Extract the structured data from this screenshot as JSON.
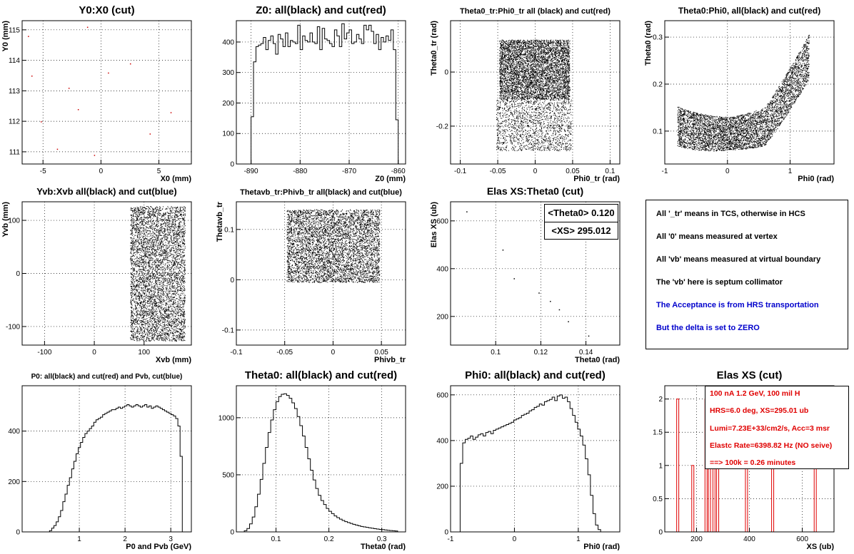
{
  "chart_data": [
    {
      "id": "p1",
      "type": "scatter",
      "title": "Y0:X0 (cut)",
      "xlabel": "X0 (mm)",
      "ylabel": "Y0 (mm)",
      "xlim": [
        -6.8,
        7.8
      ],
      "ylim": [
        110.6,
        115.3
      ],
      "xticks": [
        -5,
        0,
        5
      ],
      "yticks": [
        111,
        112,
        113,
        114,
        115
      ],
      "grid": true,
      "points": [
        [
          -6.3,
          114.8
        ],
        [
          -6.0,
          113.5
        ],
        [
          -2.8,
          113.1
        ],
        [
          -2.0,
          112.4
        ],
        [
          -1.2,
          115.1
        ],
        [
          0.6,
          113.6
        ],
        [
          -0.6,
          110.9
        ],
        [
          4.2,
          111.6
        ],
        [
          6.0,
          112.3
        ],
        [
          -3.8,
          111.1
        ],
        [
          2.5,
          113.9
        ],
        [
          -5.2,
          112.0
        ]
      ]
    },
    {
      "id": "p2",
      "type": "histogram",
      "title": "Z0: all(black) and cut(red)",
      "xlabel": "Z0 (mm)",
      "ylabel": "",
      "xlim": [
        -893,
        -858.5
      ],
      "ylim": [
        0,
        470
      ],
      "xticks": [
        -890,
        -880,
        -870,
        -860
      ],
      "yticks": [
        0,
        100,
        200,
        300,
        400
      ],
      "grid": true,
      "bin_range": [
        -890,
        -860
      ],
      "series": [
        {
          "color": "#000000",
          "values": [
            155,
            335,
            385,
            390,
            395,
            415,
            375,
            405,
            420,
            395,
            360,
            425,
            410,
            385,
            430,
            385,
            405,
            400,
            395,
            455,
            375,
            420,
            405,
            400,
            430,
            400,
            395,
            450,
            375,
            445,
            410,
            405,
            395,
            385,
            440,
            420,
            385,
            460,
            410,
            430,
            440,
            395,
            400,
            425,
            410,
            395,
            455,
            440,
            455,
            435,
            395,
            425,
            375,
            415,
            400,
            420,
            405,
            440,
            375,
            145
          ]
        },
        {
          "color": "#ff0000",
          "values": [
            0,
            0,
            0,
            0,
            0,
            0,
            0,
            0,
            0,
            0,
            0,
            0,
            0,
            0,
            0,
            0,
            0,
            0,
            0,
            0,
            0,
            0,
            0,
            0,
            0,
            0,
            0,
            0,
            0,
            0,
            0,
            0,
            0,
            0,
            0,
            0,
            0,
            0,
            0,
            0,
            0,
            0,
            0,
            0,
            0,
            0,
            0,
            0,
            0,
            0,
            0,
            0,
            0,
            0,
            0,
            0,
            0,
            0,
            0,
            0
          ]
        }
      ]
    },
    {
      "id": "p3",
      "type": "scatter",
      "title": "Theta0_tr:Phi0_tr all (black) and cut(red)",
      "xlabel": "Phi0_tr (rad)",
      "ylabel": "Theta0_tr (rad)",
      "xlim": [
        -0.113,
        0.113
      ],
      "ylim": [
        -0.34,
        0.19
      ],
      "xticks": [
        -0.1,
        -0.05,
        0,
        0.05,
        0.1
      ],
      "yticks": [
        -0.2,
        0
      ],
      "grid": true,
      "clouds": [
        {
          "shape": "rect",
          "xr": [
            -0.048,
            0.046
          ],
          "yr": [
            -0.1,
            0.12
          ],
          "n": 5200
        },
        {
          "shape": "rect",
          "xr": [
            -0.052,
            0.048
          ],
          "yr": [
            -0.29,
            -0.1
          ],
          "n": 1600
        }
      ]
    },
    {
      "id": "p4",
      "type": "scatter",
      "title": "Theta0:Phi0, all(black) and cut(red)",
      "xlabel": "Phi0 (rad)",
      "ylabel": "Theta0 (rad)",
      "xlim": [
        -1.0,
        1.7
      ],
      "ylim": [
        0.03,
        0.335
      ],
      "xticks": [
        -1,
        0,
        1
      ],
      "yticks": [
        0.1,
        0.2,
        0.3
      ],
      "grid": true,
      "clouds": [
        {
          "shape": "banana",
          "xr": [
            -0.8,
            1.3
          ],
          "n": 5200
        }
      ]
    },
    {
      "id": "p5",
      "type": "scatter",
      "title": "Yvb:Xvb all(black) and cut(blue)",
      "xlabel": "Xvb (mm)",
      "ylabel": "Yvb (mm)",
      "xlim": [
        -145,
        195
      ],
      "ylim": [
        -135,
        135
      ],
      "xticks": [
        -100,
        0,
        100
      ],
      "yticks": [
        -100,
        0,
        100
      ],
      "grid": true,
      "clouds": [
        {
          "shape": "rect",
          "xr": [
            72,
            182
          ],
          "yr": [
            -127,
            127
          ],
          "n": 6000
        }
      ]
    },
    {
      "id": "p6",
      "type": "scatter",
      "title": "Thetavb_tr:Phivb_tr all(black) and cut(blue)",
      "xlabel": "Phivb_tr",
      "ylabel": "Thetavb_tr",
      "xlim": [
        -0.1,
        0.075
      ],
      "ylim": [
        -0.13,
        0.155
      ],
      "xticks": [
        -0.1,
        -0.05,
        0,
        0.05
      ],
      "yticks": [
        -0.1,
        0,
        0.1
      ],
      "grid": true,
      "clouds": [
        {
          "shape": "rect",
          "xr": [
            -0.048,
            0.048
          ],
          "yr": [
            -0.005,
            0.14
          ],
          "n": 5500
        }
      ]
    },
    {
      "id": "p7",
      "type": "scatter",
      "title": "Elas XS:Theta0 (cut)",
      "xlabel": "Theta0 (rad)",
      "ylabel": "Elas XS (ub)",
      "xlim": [
        0.08,
        0.155
      ],
      "ylim": [
        80,
        680
      ],
      "xticks": [
        0.1,
        0.12,
        0.14
      ],
      "yticks": [
        200,
        400,
        600
      ],
      "grid": true,
      "points": [
        [
          0.087,
          640
        ],
        [
          0.103,
          480
        ],
        [
          0.124,
          265
        ],
        [
          0.128,
          230
        ],
        [
          0.119,
          300
        ],
        [
          0.141,
          120
        ],
        [
          0.108,
          360
        ],
        [
          0.132,
          180
        ]
      ],
      "stats": {
        "theta_label": "<Theta0>",
        "theta_value": "0.120",
        "xs_label": "<XS>",
        "xs_value": "295.012"
      }
    },
    {
      "id": "p9",
      "type": "histogram",
      "title": "P0: all(black) and cut(red) and Pvb, cut(blue)",
      "xlabel": "P0 and Pvb (GeV)",
      "ylabel": "",
      "xlim": [
        -0.25,
        3.45
      ],
      "ylim": [
        0,
        580
      ],
      "xticks": [
        1,
        2,
        3
      ],
      "yticks": [
        0,
        200,
        400
      ],
      "grid": true,
      "bin_range": [
        0.3,
        3.3
      ],
      "series": [
        {
          "color": "#000000",
          "values": [
            0,
            5,
            15,
            25,
            40,
            60,
            85,
            120,
            150,
            185,
            215,
            250,
            280,
            310,
            335,
            355,
            375,
            390,
            400,
            410,
            420,
            435,
            445,
            450,
            455,
            465,
            470,
            475,
            480,
            485,
            485,
            490,
            495,
            490,
            495,
            500,
            505,
            500,
            495,
            500,
            505,
            500,
            495,
            500,
            505,
            495,
            500,
            490,
            495,
            500,
            495,
            490,
            485,
            480,
            475,
            470,
            465,
            460,
            450,
            420,
            300,
            0
          ]
        },
        {
          "color": "#0000cc",
          "values": [
            0,
            0,
            0,
            0,
            0,
            0,
            0,
            0,
            0,
            0,
            0,
            0,
            0,
            0,
            0,
            0,
            0,
            0,
            0,
            0,
            0,
            0,
            0,
            0,
            0,
            0,
            0,
            0,
            0,
            0,
            0,
            0,
            0,
            0,
            0,
            0,
            0,
            0,
            0,
            0,
            0,
            0,
            0,
            0,
            0,
            0,
            0,
            0,
            0,
            0,
            0,
            0,
            0,
            0,
            0,
            0,
            0,
            0,
            0,
            0,
            0,
            0
          ]
        }
      ]
    },
    {
      "id": "p10",
      "type": "histogram",
      "title": "Theta0: all(black) and cut(red)",
      "xlabel": "Theta0 (rad)",
      "ylabel": "",
      "xlim": [
        0.025,
        0.345
      ],
      "ylim": [
        0,
        1280
      ],
      "xticks": [
        0.1,
        0.2,
        0.3
      ],
      "yticks": [
        0,
        500,
        1000
      ],
      "grid": true,
      "bin_range": [
        0.04,
        0.33
      ],
      "series": [
        {
          "color": "#000000",
          "values": [
            10,
            30,
            70,
            130,
            220,
            330,
            460,
            600,
            740,
            870,
            980,
            1070,
            1140,
            1185,
            1205,
            1210,
            1195,
            1170,
            1130,
            1080,
            1010,
            930,
            840,
            740,
            640,
            540,
            455,
            380,
            320,
            275,
            240,
            205,
            180,
            160,
            140,
            125,
            112,
            100,
            90,
            82,
            74,
            66,
            60,
            54,
            48,
            44,
            40,
            36,
            32,
            28,
            25,
            22,
            20,
            17,
            14,
            12,
            10,
            8
          ]
        },
        {
          "color": "#ff0000",
          "values": [
            0,
            0,
            0,
            0,
            0,
            0,
            0,
            0,
            0,
            0,
            0,
            0,
            0,
            0,
            0,
            0,
            0,
            0,
            0,
            0,
            0,
            0,
            0,
            0,
            0,
            0,
            0,
            0,
            0,
            0,
            0,
            0,
            0,
            0,
            0,
            0,
            0,
            0,
            0,
            0,
            0,
            0,
            0,
            0,
            0,
            0,
            0,
            0,
            0,
            0,
            0,
            0,
            0,
            0,
            0,
            0,
            0,
            0
          ]
        }
      ]
    },
    {
      "id": "p11",
      "type": "histogram",
      "title": "Phi0: all(black) and cut(red)",
      "xlabel": "Phi0 (rad)",
      "ylabel": "",
      "xlim": [
        -1.0,
        1.65
      ],
      "ylim": [
        0,
        640
      ],
      "xticks": [
        -1,
        0,
        1
      ],
      "yticks": [
        0,
        200,
        400,
        600
      ],
      "grid": true,
      "bin_range": [
        -0.85,
        1.35
      ],
      "series": [
        {
          "color": "#000000",
          "values": [
            300,
            390,
            405,
            410,
            420,
            405,
            415,
            425,
            430,
            420,
            435,
            440,
            430,
            445,
            450,
            455,
            460,
            465,
            470,
            475,
            480,
            490,
            495,
            500,
            510,
            515,
            520,
            530,
            535,
            545,
            550,
            560,
            555,
            570,
            575,
            580,
            590,
            575,
            595,
            600,
            585,
            590,
            570,
            540,
            510,
            480,
            450,
            420,
            380,
            320,
            250,
            160,
            80,
            30,
            10
          ]
        },
        {
          "color": "#ff0000",
          "values": [
            0,
            0,
            0,
            0,
            0,
            0,
            0,
            0,
            0,
            0,
            0,
            0,
            0,
            0,
            0,
            0,
            0,
            0,
            0,
            0,
            0,
            0,
            0,
            0,
            0,
            0,
            0,
            0,
            0,
            0,
            0,
            0,
            0,
            0,
            0,
            0,
            0,
            0,
            0,
            0,
            0,
            0,
            0,
            0,
            0,
            0,
            0,
            0,
            0,
            0,
            0,
            0,
            0,
            0,
            0
          ]
        }
      ]
    },
    {
      "id": "p12",
      "type": "histogram",
      "title": "Elas XS (cut)",
      "xlabel": "XS (ub)",
      "ylabel": "",
      "xlim": [
        80,
        720
      ],
      "ylim": [
        0,
        2.2
      ],
      "xticks": [
        200,
        400,
        600
      ],
      "yticks": [
        0,
        0.5,
        1,
        1.5,
        2
      ],
      "grid": true,
      "bars": [
        [
          125,
          2
        ],
        [
          182,
          1
        ],
        [
          232,
          2
        ],
        [
          245,
          1
        ],
        [
          262,
          1
        ],
        [
          276,
          1
        ],
        [
          385,
          1
        ],
        [
          484,
          1
        ],
        [
          645,
          1
        ]
      ],
      "bar_width": 8,
      "bar_color": "#e00000"
    }
  ],
  "info_panel": {
    "line1": "All '_tr' means in TCS, otherwise in HCS",
    "line2": "All '0' means measured at vertex",
    "line3": "All 'vb' means measured at virtual boundary",
    "line4": "The 'vb' here is septum collimator",
    "line5": "The Acceptance is from HRS transportation",
    "line6": "But the delta is set to ZERO",
    "color_normal": "#000000",
    "color_blue": "#0000cc"
  },
  "xs_box": {
    "line1": "100 nA 1.2 GeV, 100 mil H",
    "line2": "HRS=6.0 deg, XS=295.01 ub",
    "line3": "Lumi=7.23E+33/cm2/s, Acc=3 msr",
    "line4": "Elastc Rate=6398.82 Hz (NO seive)",
    "line5": "==> 100k = 0.26 minutes"
  }
}
